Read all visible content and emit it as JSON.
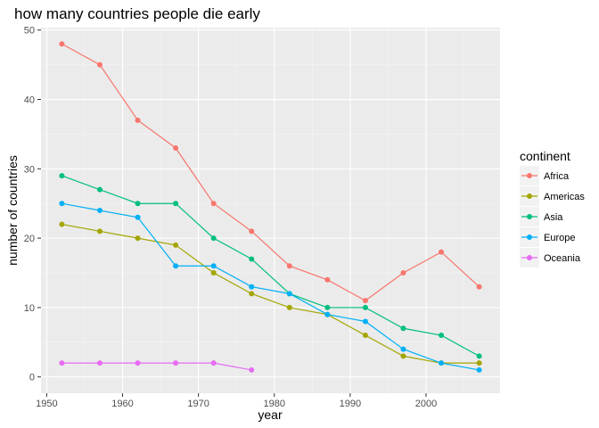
{
  "chart_data": {
    "type": "line",
    "title": "how many countries people die early",
    "xlabel": "year",
    "ylabel": "number of countries",
    "xlim": [
      1949.25,
      2009.75
    ],
    "ylim": [
      -2.35,
      50.35
    ],
    "xticks": [
      1950,
      1960,
      1970,
      1980,
      1990,
      2000
    ],
    "yticks": [
      0,
      10,
      20,
      30,
      40,
      50
    ],
    "grid": true,
    "legend_title": "continent",
    "legend_position": "right",
    "x": [
      1952,
      1957,
      1962,
      1967,
      1972,
      1977,
      1982,
      1987,
      1992,
      1997,
      2002,
      2007
    ],
    "series": [
      {
        "name": "Africa",
        "color": "#F8766D",
        "values": [
          48,
          45,
          37,
          33,
          25,
          21,
          16,
          14,
          11,
          15,
          18,
          13
        ]
      },
      {
        "name": "Americas",
        "color": "#A3A500",
        "values": [
          22,
          21,
          20,
          19,
          15,
          12,
          10,
          9,
          6,
          3,
          2,
          2
        ]
      },
      {
        "name": "Asia",
        "color": "#00BF7D",
        "values": [
          29,
          27,
          25,
          25,
          20,
          17,
          12,
          10,
          10,
          7,
          6,
          3
        ]
      },
      {
        "name": "Europe",
        "color": "#00B0F6",
        "values": [
          25,
          24,
          23,
          16,
          16,
          13,
          12,
          9,
          8,
          4,
          2,
          1
        ]
      },
      {
        "name": "Oceania",
        "color": "#E76BF3",
        "values": [
          2,
          2,
          2,
          2,
          2,
          1,
          null,
          null,
          null,
          null,
          null,
          null
        ]
      }
    ]
  }
}
